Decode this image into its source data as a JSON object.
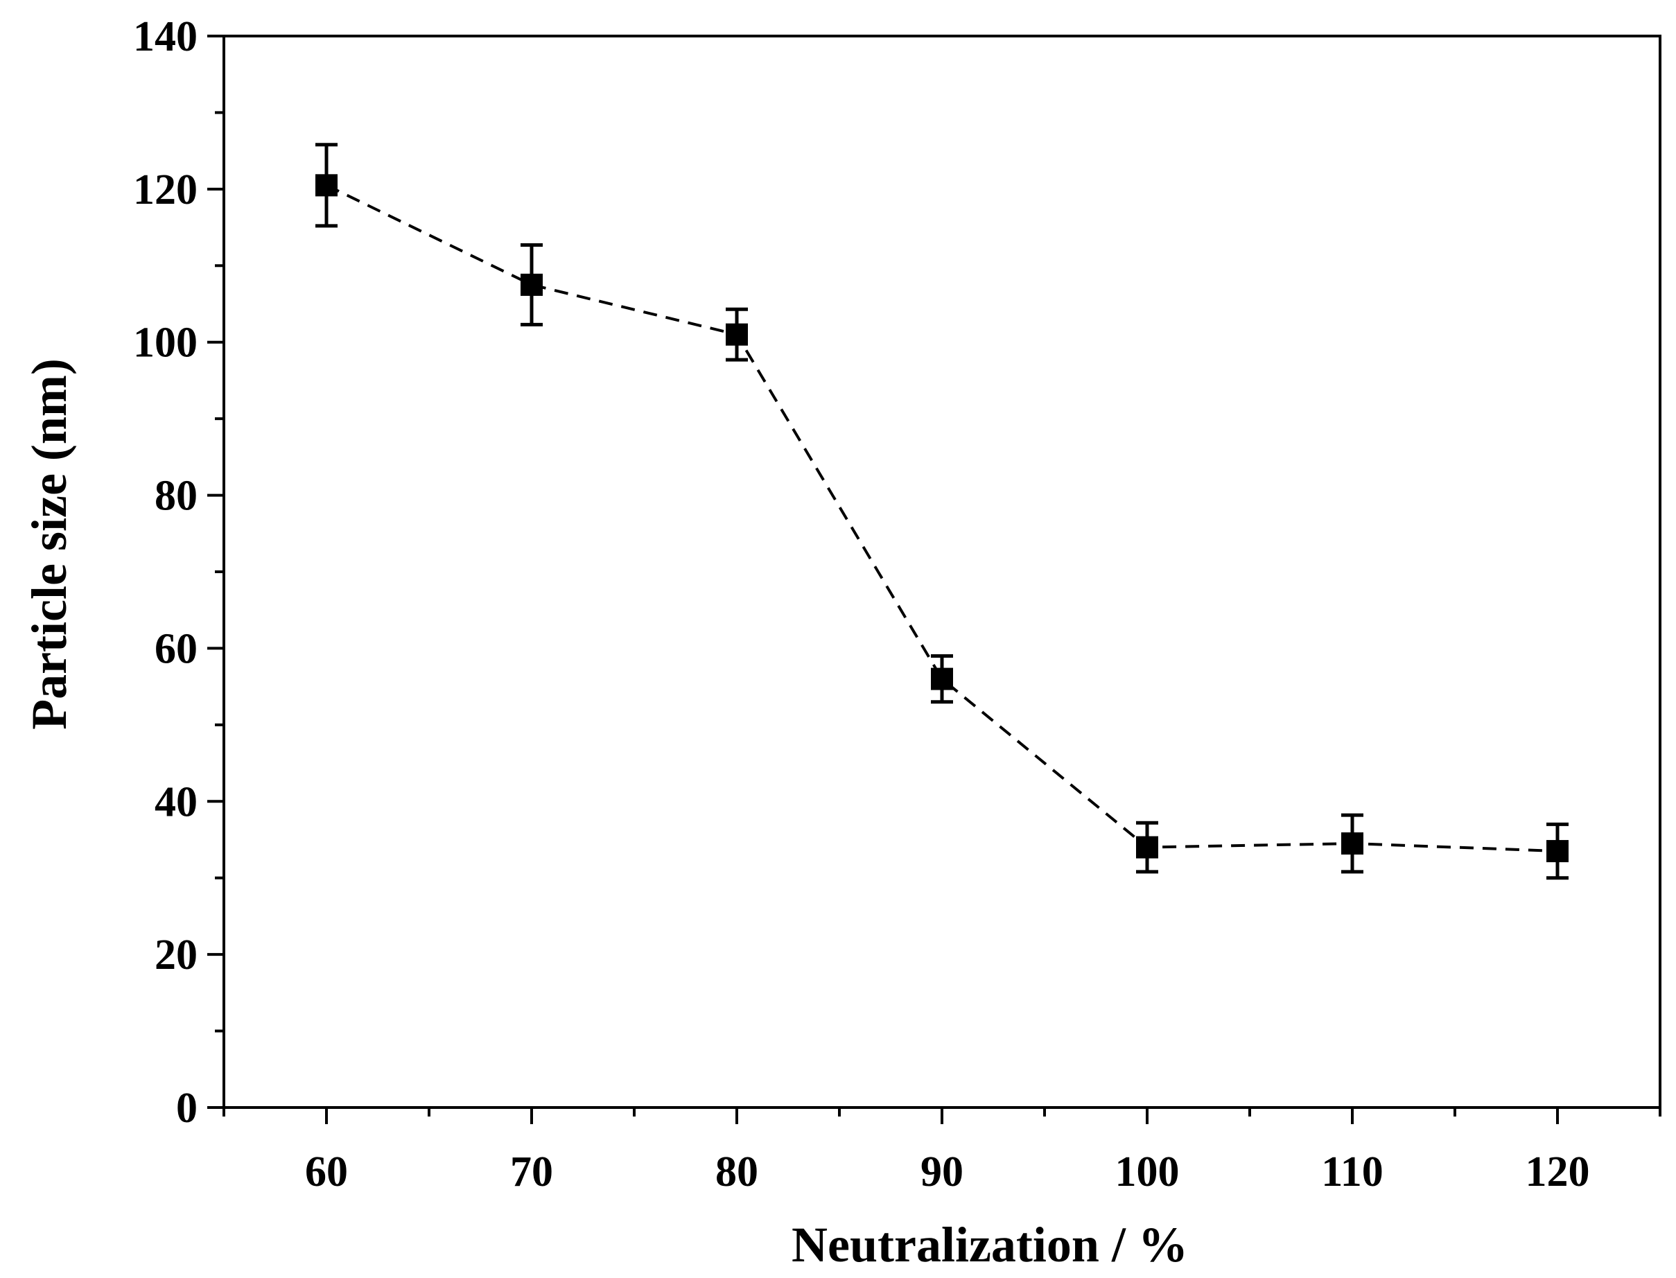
{
  "chart_data": {
    "type": "line",
    "title": "",
    "xlabel": "Neutralization / %",
    "ylabel": "Particle size (nm)",
    "xlim": [
      55,
      125
    ],
    "ylim": [
      0,
      140
    ],
    "x_ticks": [
      60,
      70,
      80,
      90,
      100,
      110,
      120
    ],
    "x_tick_labels": [
      "60",
      "70",
      "80",
      "90",
      "100",
      "110",
      "120"
    ],
    "x_minor_ticks": [
      55,
      65,
      75,
      85,
      95,
      105,
      115,
      125
    ],
    "y_ticks": [
      0,
      20,
      40,
      60,
      80,
      100,
      120,
      140
    ],
    "y_tick_labels": [
      "0",
      "20",
      "40",
      "60",
      "80",
      "100",
      "120",
      "140"
    ],
    "y_minor_ticks": [
      10,
      30,
      50,
      70,
      90,
      110,
      130
    ],
    "grid": false,
    "series": [
      {
        "name": "Particle size",
        "line_style": "dashed",
        "marker": "square",
        "color": "#000000",
        "x": [
          60,
          70,
          80,
          90,
          100,
          110,
          120
        ],
        "y": [
          120.5,
          107.5,
          101,
          56,
          34,
          34.5,
          33.5
        ],
        "error": [
          5.3,
          5.2,
          3.3,
          3.0,
          3.2,
          3.7,
          3.5
        ]
      }
    ]
  }
}
